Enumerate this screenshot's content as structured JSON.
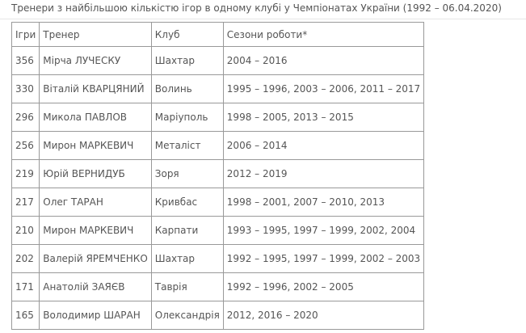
{
  "title": "Тренери з найбільшою кількістю ігор в одному клубі у Чемпіонатах України (1992 – 06.04.2020)",
  "table": {
    "header": [
      "Ігри",
      "Тренер",
      "Клуб",
      "Сезони роботи*"
    ],
    "rows": [
      [
        356,
        "Мірча ЛУЧЕСКУ",
        "Шахтар",
        "2004 – 2016"
      ],
      [
        330,
        "Віталій КВАРЦЯНИЙ",
        "Волинь",
        "1995 – 1996, 2003 – 2006, 2011 – 2017"
      ],
      [
        296,
        "Микола ПАВЛОВ",
        "Маріуполь",
        "1998 – 2005, 2013 – 2015"
      ],
      [
        256,
        "Мирон МАРКЕВИЧ",
        "Металіст",
        "2006 – 2014"
      ],
      [
        219,
        "Юрій ВЕРНИДУБ",
        "Зоря",
        "2012 – 2019"
      ],
      [
        217,
        "Олег ТАРАН",
        "Кривбас",
        "1998 – 2001, 2007 – 2010, 2013"
      ],
      [
        210,
        "Мирон МАРКЕВИЧ",
        "Карпати",
        "1993 – 1995, 1997 – 1999, 2002, 2004"
      ],
      [
        202,
        "Валерій ЯРЕМЧЕНКО",
        "Шахтар",
        "1992 – 1995, 1997 – 1999, 2002 – 2003"
      ],
      [
        171,
        "Анатолій ЗАЯЄВ",
        "Таврія",
        "1992 – 1996, 2002 – 2005"
      ],
      [
        165,
        "Володимир ШАРАН",
        "Олександрія",
        "2012, 2016 – 2020"
      ]
    ]
  }
}
